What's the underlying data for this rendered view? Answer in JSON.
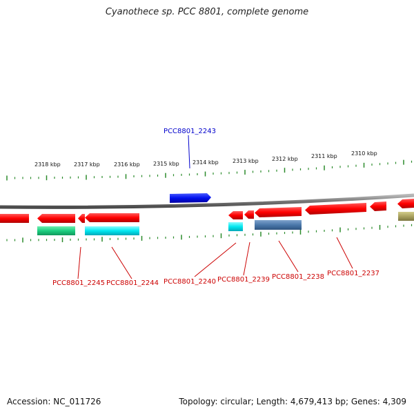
{
  "title": "Cyanothece sp. PCC 8801, complete genome",
  "accession": "Accession: NC_011726",
  "summary": "Topology: circular; Length: 4,679,413 bp; Genes: 4,309",
  "colors": {
    "backbone": "#8c8c8c",
    "tick": "#2a8a2a",
    "red_gene": "#ff0000",
    "blue_gene": "#0000ee",
    "label_red": "#cc0000",
    "label_blue": "#0000cc"
  },
  "scale_labels": [
    "2318 kbp",
    "2317 kbp",
    "2316 kbp",
    "2315 kbp",
    "2314 kbp",
    "2313 kbp",
    "2312 kbp",
    "2311 kbp",
    "2310 kbp"
  ],
  "gene_labels": [
    {
      "name": "PCC8801_2243",
      "strand": "forward"
    },
    {
      "name": "PCC8801_2245",
      "strand": "reverse"
    },
    {
      "name": "PCC8801_2244",
      "strand": "reverse"
    },
    {
      "name": "PCC8801_2240",
      "strand": "reverse"
    },
    {
      "name": "PCC8801_2239",
      "strand": "reverse"
    },
    {
      "name": "PCC8801_2238",
      "strand": "reverse"
    },
    {
      "name": "PCC8801_2237",
      "strand": "reverse"
    }
  ]
}
